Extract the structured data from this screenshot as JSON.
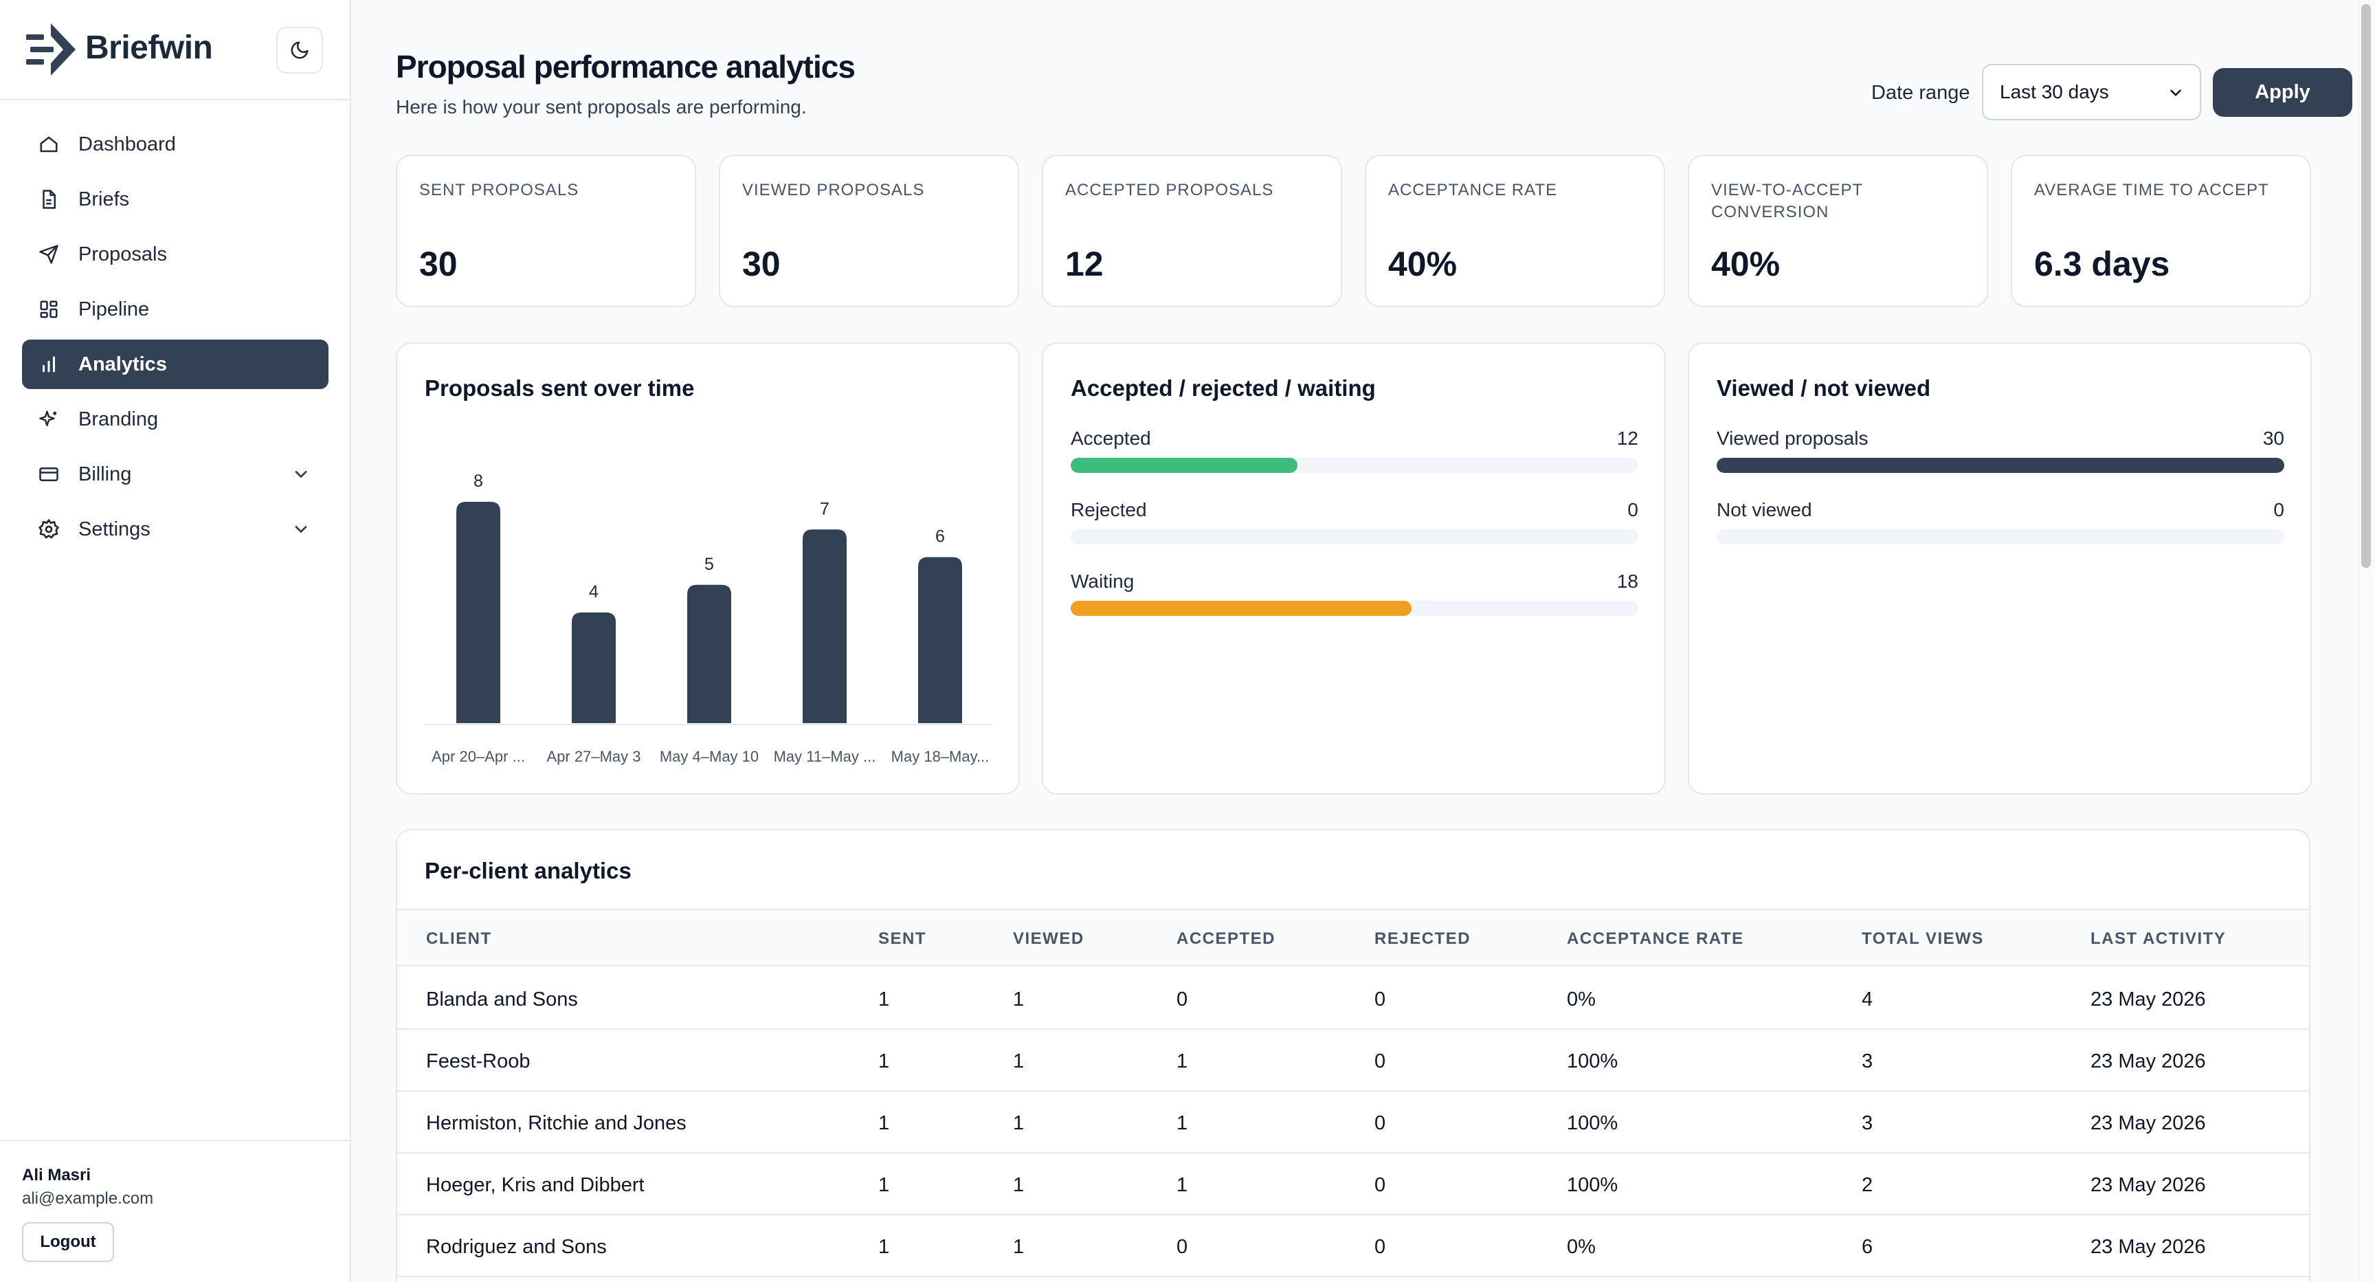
{
  "brand": {
    "name": "Briefwin"
  },
  "nav": {
    "items": [
      {
        "label": "Dashboard",
        "icon": "home-icon"
      },
      {
        "label": "Briefs",
        "icon": "file-icon"
      },
      {
        "label": "Proposals",
        "icon": "send-icon"
      },
      {
        "label": "Pipeline",
        "icon": "grid-icon"
      },
      {
        "label": "Analytics",
        "icon": "bar-chart-icon",
        "active": true
      },
      {
        "label": "Branding",
        "icon": "sparkle-icon"
      },
      {
        "label": "Billing",
        "icon": "credit-card-icon",
        "expandable": true
      },
      {
        "label": "Settings",
        "icon": "gear-icon",
        "expandable": true
      }
    ]
  },
  "user": {
    "name": "Ali Masri",
    "email": "ali@example.com",
    "logout_label": "Logout"
  },
  "header": {
    "title": "Proposal performance analytics",
    "subtitle": "Here is how your sent proposals are performing.",
    "date_range_label": "Date range",
    "date_range_value": "Last 30 days",
    "apply_label": "Apply"
  },
  "stats": [
    {
      "label": "SENT PROPOSALS",
      "value": "30"
    },
    {
      "label": "VIEWED PROPOSALS",
      "value": "30"
    },
    {
      "label": "ACCEPTED PROPOSALS",
      "value": "12"
    },
    {
      "label": "ACCEPTANCE RATE",
      "value": "40%"
    },
    {
      "label": "VIEW-TO-ACCEPT CONVERSION",
      "value": "40%"
    },
    {
      "label": "AVERAGE TIME TO ACCEPT",
      "value": "6.3 days"
    }
  ],
  "panels": {
    "sent_over_time": {
      "title": "Proposals sent over time"
    },
    "status": {
      "title": "Accepted / rejected / waiting",
      "rows": [
        {
          "label": "Accepted",
          "value": "12",
          "fraction": 0.4,
          "color": "#3dbd7d"
        },
        {
          "label": "Rejected",
          "value": "0",
          "fraction": 0,
          "color": "#e2e8f0"
        },
        {
          "label": "Waiting",
          "value": "18",
          "fraction": 0.6,
          "color": "#f0a020"
        }
      ]
    },
    "viewed": {
      "title": "Viewed / not viewed",
      "rows": [
        {
          "label": "Viewed proposals",
          "value": "30",
          "fraction": 1,
          "color": "#334155"
        },
        {
          "label": "Not viewed",
          "value": "0",
          "fraction": 0,
          "color": "#e2e8f0"
        }
      ]
    }
  },
  "chart_data": {
    "type": "bar",
    "categories": [
      "Apr 20–Apr ...",
      "Apr 27–May 3",
      "May 4–May 10",
      "May 11–May ...",
      "May 18–May..."
    ],
    "values": [
      8,
      4,
      5,
      7,
      6
    ],
    "title": "Proposals sent over time",
    "xlabel": "",
    "ylabel": "",
    "ylim": [
      0,
      8
    ],
    "grid": false,
    "bar_color": "#334155"
  },
  "table": {
    "title": "Per-client analytics",
    "columns": [
      "CLIENT",
      "SENT",
      "VIEWED",
      "ACCEPTED",
      "REJECTED",
      "ACCEPTANCE RATE",
      "TOTAL VIEWS",
      "LAST ACTIVITY"
    ],
    "rows": [
      [
        "Blanda and Sons",
        "1",
        "1",
        "0",
        "0",
        "0%",
        "4",
        "23 May 2026"
      ],
      [
        "Feest-Roob",
        "1",
        "1",
        "1",
        "0",
        "100%",
        "3",
        "23 May 2026"
      ],
      [
        "Hermiston, Ritchie and Jones",
        "1",
        "1",
        "1",
        "0",
        "100%",
        "3",
        "23 May 2026"
      ],
      [
        "Hoeger, Kris and Dibbert",
        "1",
        "1",
        "1",
        "0",
        "100%",
        "2",
        "23 May 2026"
      ],
      [
        "Rodriguez and Sons",
        "1",
        "1",
        "0",
        "0",
        "0%",
        "6",
        "23 May 2026"
      ]
    ]
  }
}
